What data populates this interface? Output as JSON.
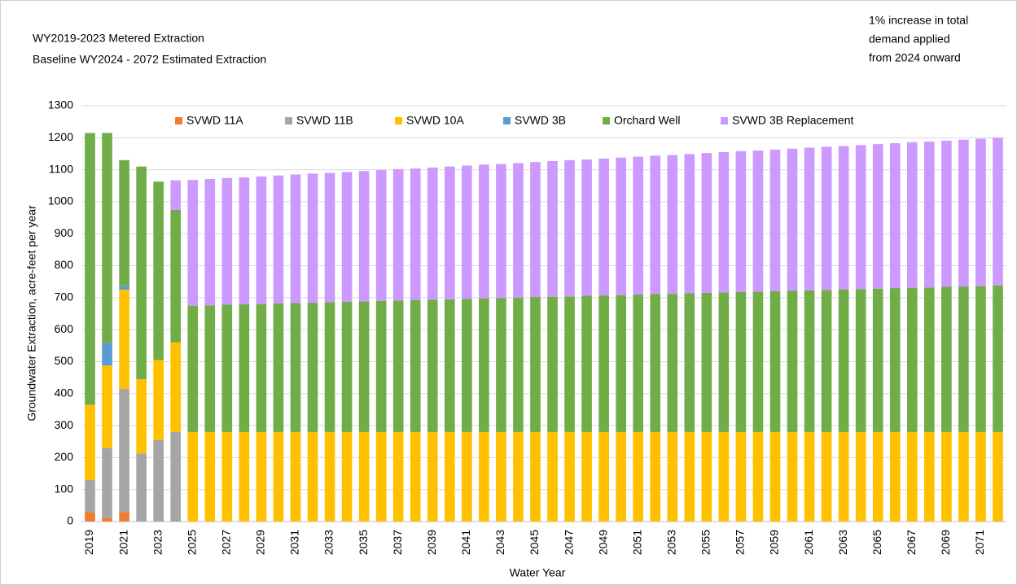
{
  "chart_data": {
    "type": "stacked-bar",
    "title": "WY2019-2023 Metered Extraction",
    "subtitle": "Baseline WY2024 - 2072 Estimated Extraction",
    "annotation": [
      "1% increase in total",
      "demand applied",
      "from 2024 onward"
    ],
    "x_label": "Water Year",
    "y_label": "Groundwater Extraction, acre-feet per year",
    "categories": [
      "2019",
      null,
      "2021",
      null,
      "2023",
      null,
      "2025",
      null,
      "2027",
      null,
      "2029",
      null,
      "2031",
      null,
      "2033",
      null,
      "2035",
      null,
      "2037",
      null,
      "2039",
      null,
      "2041",
      null,
      "2043",
      null,
      "2045",
      null,
      "2047",
      null,
      "2049",
      null,
      "2051",
      null,
      "2053",
      null,
      "2055",
      null,
      "2057",
      null,
      "2059",
      null,
      "2061",
      null,
      "2063",
      null,
      "2065",
      null,
      "2067",
      null,
      "2069",
      null,
      "2071",
      null
    ],
    "ylim": [
      0,
      1300
    ],
    "yticks": [
      0,
      100,
      200,
      300,
      400,
      500,
      600,
      700,
      800,
      900,
      1000,
      1100,
      1200,
      1300
    ],
    "grid": true,
    "legend": "top",
    "series": [
      {
        "name": "SVWD 11A",
        "color": "#ed7d31",
        "values": [
          30,
          12,
          30,
          0,
          0,
          0,
          0,
          0,
          0,
          0,
          0,
          0,
          0,
          0,
          0,
          0,
          0,
          0,
          0,
          0,
          0,
          0,
          0,
          0,
          0,
          0,
          0,
          0,
          0,
          0,
          0,
          0,
          0,
          0,
          0,
          0,
          0,
          0,
          0,
          0,
          0,
          0,
          0,
          0,
          0,
          0,
          0,
          0,
          0,
          0,
          0,
          0,
          0,
          0
        ]
      },
      {
        "name": "SVWD 11B",
        "color": "#a5a5a5",
        "values": [
          100,
          218,
          385,
          213,
          255,
          280,
          0,
          0,
          0,
          0,
          0,
          0,
          0,
          0,
          0,
          0,
          0,
          0,
          0,
          0,
          0,
          0,
          0,
          0,
          0,
          0,
          0,
          0,
          0,
          0,
          0,
          0,
          0,
          0,
          0,
          0,
          0,
          0,
          0,
          0,
          0,
          0,
          0,
          0,
          0,
          0,
          0,
          0,
          0,
          0,
          0,
          0,
          0,
          0
        ]
      },
      {
        "name": "SVWD 10A",
        "color": "#ffc000",
        "values": [
          235,
          258,
          310,
          232,
          250,
          280,
          280,
          280,
          280,
          280,
          280,
          280,
          280,
          280,
          280,
          280,
          280,
          280,
          280,
          280,
          280,
          280,
          280,
          280,
          280,
          280,
          280,
          280,
          280,
          280,
          280,
          280,
          280,
          280,
          280,
          280,
          280,
          280,
          280,
          280,
          280,
          280,
          280,
          280,
          280,
          280,
          280,
          280,
          280,
          280,
          280,
          280,
          280,
          280
        ]
      },
      {
        "name": "SVWD 3B",
        "color": "#5b9bd5",
        "values": [
          0,
          70,
          12,
          0,
          0,
          0,
          0,
          0,
          0,
          0,
          0,
          0,
          0,
          0,
          0,
          0,
          0,
          0,
          0,
          0,
          0,
          0,
          0,
          0,
          0,
          0,
          0,
          0,
          0,
          0,
          0,
          0,
          0,
          0,
          0,
          0,
          0,
          0,
          0,
          0,
          0,
          0,
          0,
          0,
          0,
          0,
          0,
          0,
          0,
          0,
          0,
          0,
          0,
          0
        ]
      },
      {
        "name": "Orchard Well",
        "color": "#70ad47",
        "values": [
          850,
          657,
          393,
          665,
          558,
          415,
          395,
          396,
          398,
          399,
          400,
          402,
          403,
          404,
          406,
          407,
          408,
          410,
          411,
          412,
          414,
          415,
          416,
          418,
          419,
          420,
          422,
          423,
          424,
          426,
          427,
          428,
          430,
          431,
          432,
          434,
          435,
          436,
          438,
          439,
          440,
          442,
          443,
          444,
          446,
          447,
          448,
          450,
          451,
          452,
          454,
          455,
          456,
          458
        ]
      },
      {
        "name": "SVWD 3B Replacement",
        "color": "#cc99ff",
        "values": [
          0,
          0,
          0,
          0,
          0,
          92,
          393,
          395,
          396,
          397,
          399,
          400,
          402,
          404,
          404,
          406,
          408,
          409,
          411,
          412,
          413,
          415,
          417,
          418,
          419,
          421,
          422,
          424,
          426,
          426,
          428,
          430,
          431,
          433,
          434,
          435,
          437,
          439,
          440,
          441,
          443,
          444,
          446,
          448,
          448,
          450,
          452,
          453,
          455,
          456,
          457,
          459,
          461,
          462
        ]
      }
    ]
  }
}
